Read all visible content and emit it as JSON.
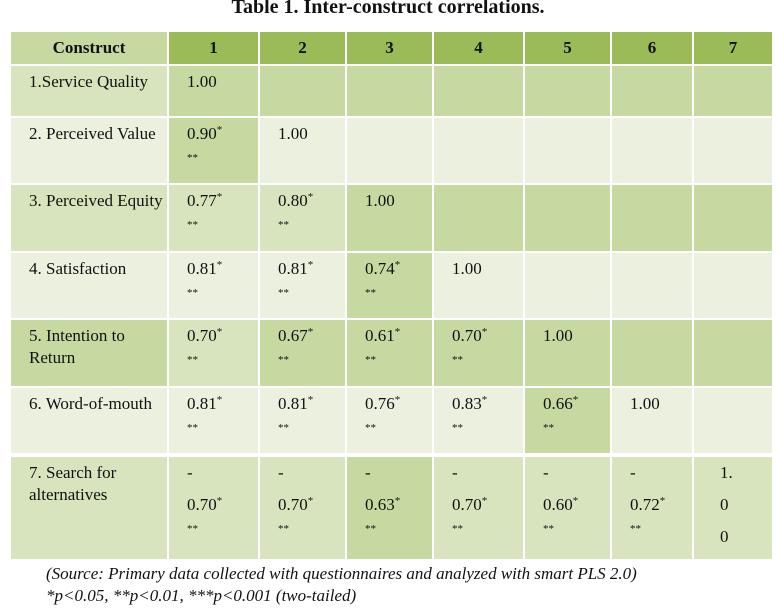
{
  "title": "Table 1. Inter-construct correlations.",
  "header": {
    "construct": "Construct",
    "columns": [
      "1",
      "2",
      "3",
      "4",
      "5",
      "6",
      "7"
    ]
  },
  "rows": [
    {
      "label": "1.Service Quality",
      "cells": [
        {
          "value": "1.00",
          "sup": "",
          "stars": ""
        },
        {
          "value": "",
          "sup": "",
          "stars": ""
        },
        {
          "value": "",
          "sup": "",
          "stars": ""
        },
        {
          "value": "",
          "sup": "",
          "stars": ""
        },
        {
          "value": "",
          "sup": "",
          "stars": ""
        },
        {
          "value": "",
          "sup": "",
          "stars": ""
        },
        {
          "value": "",
          "sup": "",
          "stars": ""
        }
      ]
    },
    {
      "label": "2. Perceived Value",
      "cells": [
        {
          "value": "0.90",
          "sup": "*",
          "stars": "**"
        },
        {
          "value": "1.00",
          "sup": "",
          "stars": ""
        },
        {
          "value": "",
          "sup": "",
          "stars": ""
        },
        {
          "value": "",
          "sup": "",
          "stars": ""
        },
        {
          "value": "",
          "sup": "",
          "stars": ""
        },
        {
          "value": "",
          "sup": "",
          "stars": ""
        },
        {
          "value": "",
          "sup": "",
          "stars": ""
        }
      ]
    },
    {
      "label": "3. Perceived Equity",
      "cells": [
        {
          "value": "0.77",
          "sup": "*",
          "stars": "**"
        },
        {
          "value": "0.80",
          "sup": "*",
          "stars": "**"
        },
        {
          "value": "1.00",
          "sup": "",
          "stars": ""
        },
        {
          "value": "",
          "sup": "",
          "stars": ""
        },
        {
          "value": "",
          "sup": "",
          "stars": ""
        },
        {
          "value": "",
          "sup": "",
          "stars": ""
        },
        {
          "value": "",
          "sup": "",
          "stars": ""
        }
      ]
    },
    {
      "label": "4. Satisfaction",
      "cells": [
        {
          "value": "0.81",
          "sup": "*",
          "stars": "**"
        },
        {
          "value": "0.81",
          "sup": "*",
          "stars": "**"
        },
        {
          "value": "0.74",
          "sup": "*",
          "stars": "**"
        },
        {
          "value": "1.00",
          "sup": "",
          "stars": ""
        },
        {
          "value": "",
          "sup": "",
          "stars": ""
        },
        {
          "value": "",
          "sup": "",
          "stars": ""
        },
        {
          "value": "",
          "sup": "",
          "stars": ""
        }
      ]
    },
    {
      "label": "5. Intention to Return",
      "cells": [
        {
          "value": "0.70",
          "sup": "*",
          "stars": "**"
        },
        {
          "value": "0.67",
          "sup": "*",
          "stars": "**"
        },
        {
          "value": "0.61",
          "sup": "*",
          "stars": "**"
        },
        {
          "value": "0.70",
          "sup": "*",
          "stars": "**"
        },
        {
          "value": "1.00",
          "sup": "",
          "stars": ""
        },
        {
          "value": "",
          "sup": "",
          "stars": ""
        },
        {
          "value": "",
          "sup": "",
          "stars": ""
        }
      ]
    },
    {
      "label": "6. Word-of-mouth",
      "cells": [
        {
          "value": "0.81",
          "sup": "*",
          "stars": "**"
        },
        {
          "value": "0.81",
          "sup": "*",
          "stars": "**"
        },
        {
          "value": "0.76",
          "sup": "*",
          "stars": "**"
        },
        {
          "value": "0.83",
          "sup": "*",
          "stars": "**"
        },
        {
          "value": "0.66",
          "sup": "*",
          "stars": "**"
        },
        {
          "value": "1.00",
          "sup": "",
          "stars": ""
        },
        {
          "value": "",
          "sup": "",
          "stars": ""
        }
      ]
    },
    {
      "label": "7. Search for alternatives",
      "cells": [
        {
          "prefix": "-",
          "value": "0.70",
          "sup": "*",
          "stars": "**"
        },
        {
          "prefix": "-",
          "value": "0.70",
          "sup": "*",
          "stars": "**"
        },
        {
          "prefix": "-",
          "value": "0.63",
          "sup": "*",
          "stars": "**"
        },
        {
          "prefix": "-",
          "value": "0.70",
          "sup": "*",
          "stars": "**"
        },
        {
          "prefix": "-",
          "value": "0.60",
          "sup": "*",
          "stars": "**"
        },
        {
          "prefix": "-",
          "value": "0.72",
          "sup": "*",
          "stars": "**"
        },
        {
          "stacked": [
            "1.",
            "0",
            "0"
          ]
        }
      ]
    }
  ],
  "footer": {
    "source": "(Source: Primary data collected with questionnaires and analyzed with smart PLS 2.0)",
    "note": "*p<0.05, **p<0.01, ***p<0.001 (two-tailed)"
  },
  "colors": {
    "header": "#9bbb59",
    "cell_medium": "#d7e4bd",
    "cell_dark": "#c6d9a1",
    "cell_light": "#ebf1de"
  }
}
